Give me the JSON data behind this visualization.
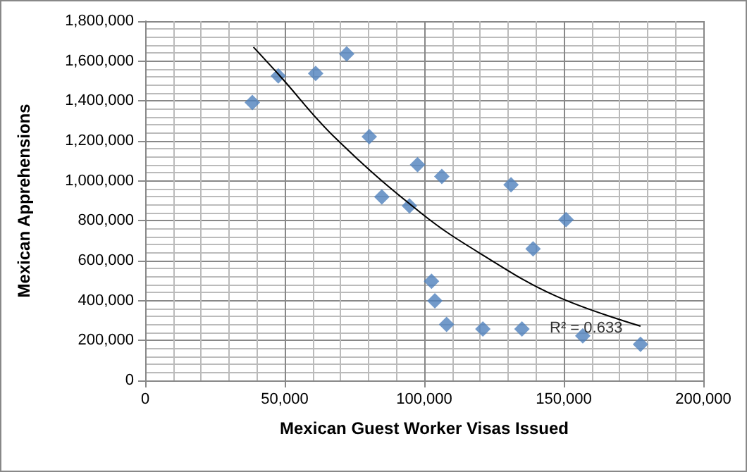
{
  "chart_data": {
    "type": "scatter",
    "xlabel": "Mexican Guest Worker Visas Issued",
    "ylabel": "Mexican Apprehensions",
    "xlim": [
      0,
      200000
    ],
    "xticks": [
      0,
      {
        "value": 50000,
        "label": "50,000"
      },
      {
        "value": 100000,
        "label": "100,000"
      },
      {
        "value": 150000,
        "label": "150,000"
      },
      {
        "value": 200000,
        "label": "200,000"
      }
    ],
    "ylim": [
      0,
      1800000
    ],
    "yticks": [
      0,
      {
        "value": 200000,
        "label": "200,000"
      },
      {
        "value": 400000,
        "label": "400,000"
      },
      {
        "value": 600000,
        "label": "600,000"
      },
      {
        "value": 800000,
        "label": "800,000"
      },
      {
        "value": 1000000,
        "label": "1,000,000"
      },
      {
        "value": 1200000,
        "label": "1,200,000"
      },
      {
        "value": 1400000,
        "label": "1,400,000"
      },
      {
        "value": 1600000,
        "label": "1,600,000"
      },
      {
        "value": 1800000,
        "label": "1,800,000"
      }
    ],
    "grid": true,
    "marker": "diamond",
    "series": [
      {
        "type": "scatter",
        "color": "#4f81bd",
        "x": [
          38400,
          47700,
          61100,
          72200,
          80300,
          97600,
          84800,
          94700,
          102600,
          103800,
          106300,
          131100,
          150800,
          139000,
          108000,
          121000,
          135000,
          156800,
          177500
        ],
        "values": [
          1392000,
          1526000,
          1538000,
          1636000,
          1221000,
          1081000,
          919000,
          874000,
          497000,
          399000,
          1022000,
          980000,
          806000,
          659000,
          281000,
          258000,
          258000,
          223000,
          181000
        ]
      },
      {
        "type": "line",
        "color": "#000000",
        "marker": "none",
        "x": [
          38800,
          48000,
          68200,
          99200,
          121000,
          147000,
          177500
        ],
        "values": [
          1670000,
          1530000,
          1214000,
          835000,
          628000,
          424000,
          272000
        ]
      }
    ],
    "annotations": [
      {
        "text": "R² = 0.633",
        "x": 158000,
        "y": 260000
      }
    ]
  }
}
